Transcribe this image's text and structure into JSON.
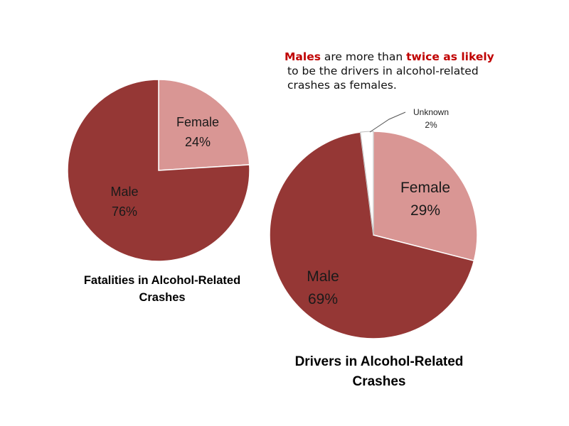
{
  "colors": {
    "male": "#953735",
    "female": "#d99694",
    "unknown": "#ffffff",
    "stroke": "#ffffff",
    "highlight": "#c00000"
  },
  "callout": {
    "males": "Males",
    "text1": " are more than ",
    "twice": "twice as likely",
    "line2": "to be the drivers in alcohol-related",
    "line3": "crashes as females."
  },
  "chart_data": [
    {
      "type": "pie",
      "title": "Fatalities in Alcohol-Related Crashes",
      "title_lines": [
        "Fatalities in Alcohol-Related",
        "Crashes"
      ],
      "slices": [
        {
          "name": "Female",
          "value": 24,
          "label": "24%",
          "color": "#d99694"
        },
        {
          "name": "Male",
          "value": 76,
          "label": "76%",
          "color": "#953735"
        }
      ]
    },
    {
      "type": "pie",
      "title": "Drivers in Alcohol-Related Crashes",
      "title_lines": [
        "Drivers in Alcohol-Related",
        "Crashes"
      ],
      "slices": [
        {
          "name": "Female",
          "value": 29,
          "label": "29%",
          "color": "#d99694"
        },
        {
          "name": "Male",
          "value": 69,
          "label": "69%",
          "color": "#953735"
        },
        {
          "name": "Unknown",
          "value": 2,
          "label": "2%",
          "color": "#ffffff"
        }
      ]
    }
  ]
}
